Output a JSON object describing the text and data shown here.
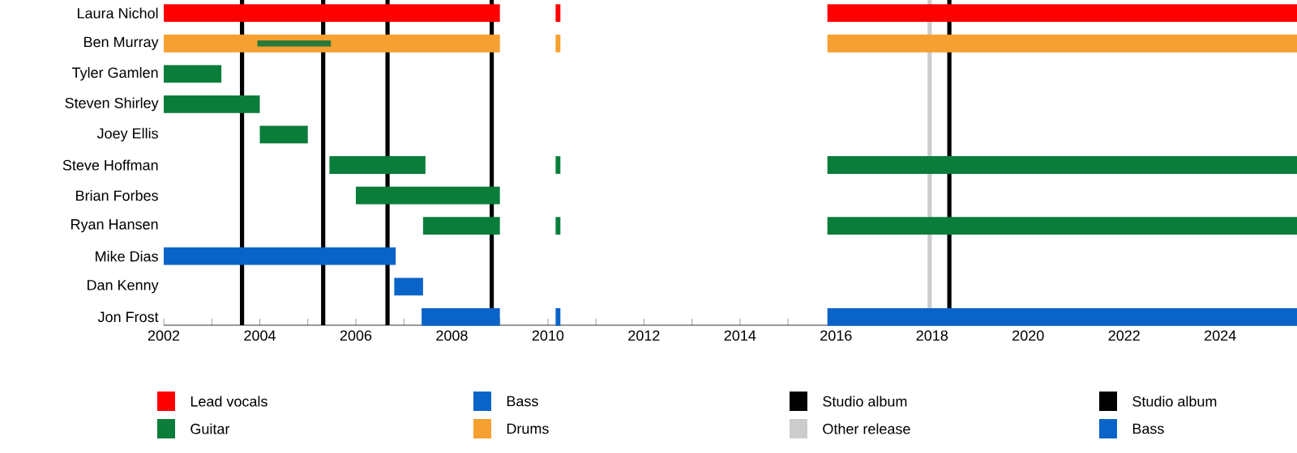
{
  "chart_data": {
    "type": "bar",
    "orientation": "horizontal",
    "legend": "bottom",
    "categories": [
      "Laura Nichol",
      "Ben Murray",
      "Tyler Gamlen",
      "Steven Shirley",
      "Joey Ellis",
      "Steve Hoffman",
      "Brian Forbes",
      "Ryan Hansen",
      "Mike Dias",
      "Dan Kenny",
      "Jon Frost"
    ],
    "xlim": [
      2002,
      2025.6
    ],
    "xticks": [
      2002,
      {
        "value": 2003,
        "label": null
      },
      2004,
      {
        "value": 2005,
        "label": null
      },
      2006,
      {
        "value": 2007,
        "label": null
      },
      2008,
      {
        "value": 2009,
        "label": null
      },
      2010,
      {
        "value": 2011,
        "label": null
      },
      2012,
      {
        "value": 2013,
        "label": null
      },
      2014,
      {
        "value": 2015,
        "label": null
      },
      2016,
      {
        "value": 2017,
        "label": null
      },
      2018,
      {
        "value": 2019,
        "label": null
      },
      2020,
      {
        "value": 2021,
        "label": null
      },
      2022,
      {
        "value": 2023,
        "label": null
      },
      2024,
      {
        "value": 2025,
        "label": null
      }
    ],
    "series": [
      {
        "name": "Lead vocals",
        "color": "#ff0000",
        "values": [
          7.0,
          null,
          null,
          null,
          null,
          null,
          null,
          null,
          null,
          null,
          null
        ],
        "base": [
          2002,
          null,
          null,
          null,
          null,
          null,
          null,
          null,
          null,
          null,
          null
        ]
      },
      {
        "name": "Guitar",
        "color": "#0a7d3a",
        "values": [
          null,
          null,
          1.2,
          2.0,
          1.0,
          2.0,
          3.0,
          1.6,
          null,
          null,
          null
        ],
        "base": [
          null,
          null,
          2002,
          2002,
          2004,
          2005.45,
          2006,
          2007.4,
          null,
          null,
          null
        ]
      },
      {
        "name": "Bass",
        "color": "#0a64c8",
        "values": [
          null,
          null,
          null,
          null,
          null,
          null,
          null,
          null,
          4.83,
          0.6,
          1.63
        ],
        "base": [
          null,
          null,
          null,
          null,
          null,
          null,
          null,
          null,
          2002,
          2006.8,
          2007.37
        ]
      },
      {
        "name": "Drums",
        "color": "#f5a030",
        "values": [
          null,
          7.0,
          null,
          null,
          null,
          null,
          null,
          null,
          null,
          null,
          null
        ],
        "base": [
          null,
          2002,
          null,
          null,
          null,
          null,
          null,
          null,
          null,
          null,
          null
        ]
      },
      {
        "color": "#2a7a3a",
        "values": [
          null,
          1.53,
          null,
          null,
          null,
          null,
          null,
          null,
          null,
          null,
          null
        ],
        "base": [
          null,
          2003.95,
          null,
          null,
          null,
          null,
          null,
          null,
          null,
          null,
          null
        ]
      },
      {
        "color": "#ff0000",
        "values": [
          0.1,
          null,
          null,
          null,
          null,
          null,
          null,
          null,
          null,
          null,
          null
        ],
        "base": [
          2010.16,
          null,
          null,
          null,
          null,
          null,
          null,
          null,
          null,
          null,
          null
        ]
      },
      {
        "color": "#f5a030",
        "values": [
          null,
          0.1,
          null,
          null,
          null,
          null,
          null,
          null,
          null,
          null,
          null
        ],
        "base": [
          null,
          2010.16,
          null,
          null,
          null,
          null,
          null,
          null,
          null,
          null,
          null
        ]
      },
      {
        "color": "#0a7d3a",
        "values": [
          null,
          null,
          null,
          null,
          null,
          0.1,
          null,
          0.1,
          null,
          null,
          null
        ],
        "base": [
          null,
          null,
          null,
          null,
          null,
          2010.16,
          null,
          2010.16,
          null,
          null,
          null
        ]
      },
      {
        "color": "#0a64c8",
        "values": [
          null,
          null,
          null,
          null,
          null,
          null,
          null,
          null,
          null,
          null,
          0.1
        ],
        "base": [
          null,
          null,
          null,
          null,
          null,
          null,
          null,
          null,
          null,
          null,
          2010.16
        ]
      },
      {
        "color": "#ff0000",
        "values": [
          9.78,
          null,
          null,
          null,
          null,
          null,
          null,
          null,
          null,
          null,
          null
        ],
        "base": [
          2015.82,
          null,
          null,
          null,
          null,
          null,
          null,
          null,
          null,
          null,
          null
        ]
      },
      {
        "color": "#f5a030",
        "values": [
          null,
          9.78,
          null,
          null,
          null,
          null,
          null,
          null,
          null,
          null,
          null
        ],
        "base": [
          null,
          2015.82,
          null,
          null,
          null,
          null,
          null,
          null,
          null,
          null,
          null
        ]
      },
      {
        "color": "#0a7d3a",
        "values": [
          null,
          null,
          null,
          null,
          null,
          9.78,
          null,
          9.78,
          null,
          null,
          null
        ],
        "base": [
          null,
          null,
          null,
          null,
          null,
          2015.82,
          null,
          2015.82,
          null,
          null,
          null
        ]
      },
      {
        "name": "Bass",
        "color": "#0a64c8",
        "values": [
          null,
          null,
          null,
          null,
          null,
          null,
          null,
          null,
          null,
          null,
          9.78
        ],
        "base": [
          null,
          null,
          null,
          null,
          null,
          null,
          null,
          null,
          null,
          null,
          2015.82
        ]
      }
    ],
    "ref_lines": [
      {
        "axis": "x",
        "value": 2003.63,
        "label": "Studio album",
        "color": "#000000"
      },
      {
        "axis": "x",
        "value": 2005.32,
        "color": "#000000"
      },
      {
        "axis": "x",
        "value": 2006.66,
        "color": "#000000"
      },
      {
        "axis": "x",
        "value": 2008.83,
        "color": "#000000"
      },
      {
        "axis": "x",
        "value": 2017.95,
        "label": "Other release",
        "color": "#cccccc"
      },
      {
        "axis": "x",
        "value": 2018.36,
        "label": "Studio album",
        "color": "#000000"
      }
    ]
  }
}
